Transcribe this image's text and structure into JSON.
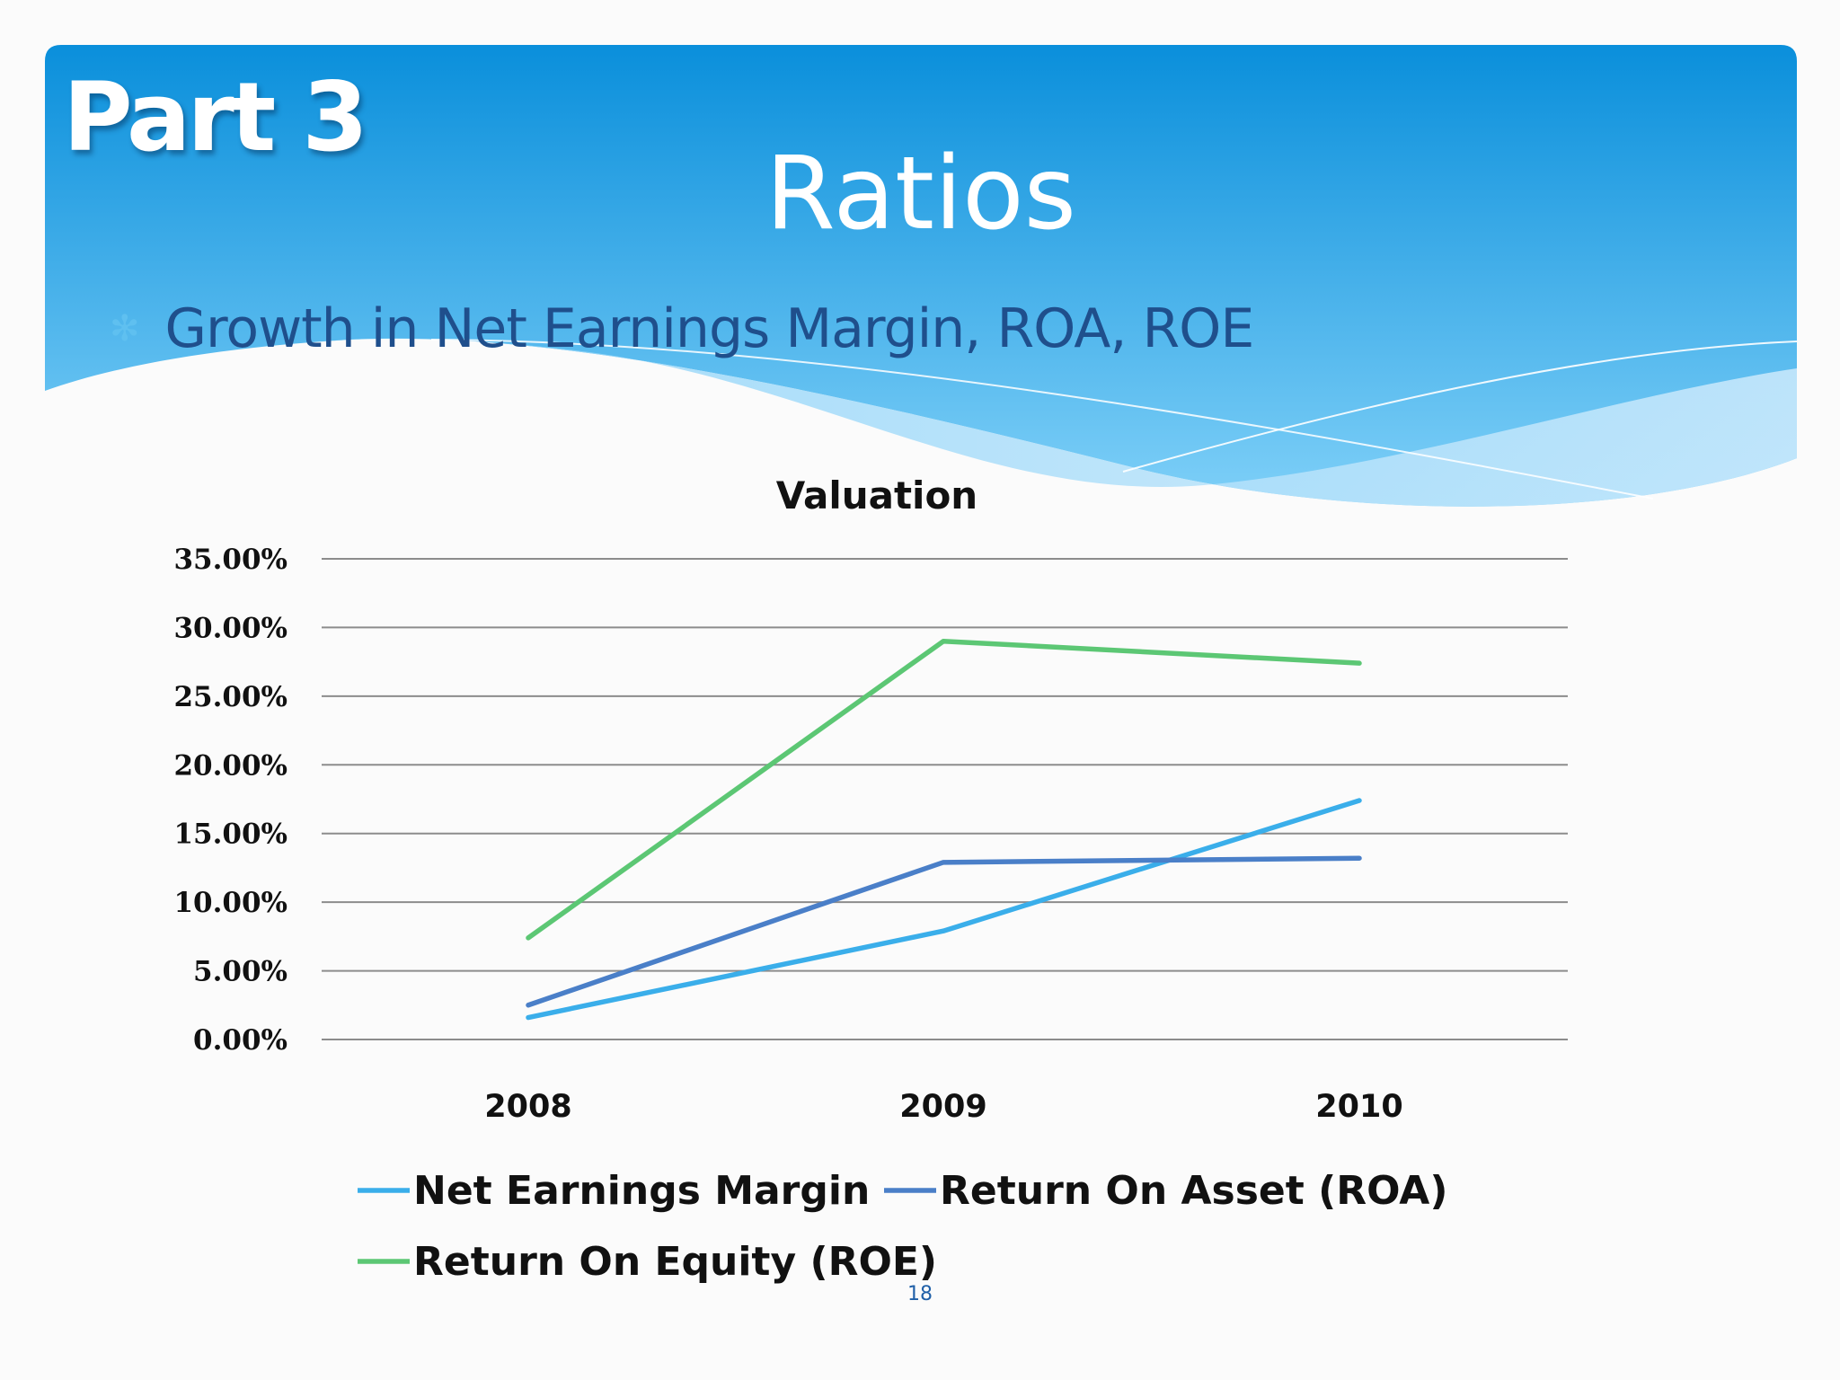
{
  "slide": {
    "part_label": "Part 3",
    "title": "Ratios",
    "bullet_icon": "asterisk-bullet-icon",
    "bullet_text": "Growth in Net Earnings Margin, ROA, ROE",
    "page_number": "18"
  },
  "colors": {
    "banner_top": "#0a8fdb",
    "banner_bottom": "#7fd0f8",
    "title_text": "#ffffff",
    "bullet_text": "#1f4f8c",
    "grid": "#8c8c8c"
  },
  "chart_data": {
    "type": "line",
    "title": "Valuation",
    "categories": [
      "2008",
      "2009",
      "2010"
    ],
    "y_ticks": [
      "0.00%",
      "5.00%",
      "10.00%",
      "15.00%",
      "20.00%",
      "25.00%",
      "30.00%",
      "35.00%"
    ],
    "ylim": [
      0,
      35
    ],
    "grid": true,
    "legend_position": "bottom",
    "series": [
      {
        "name": "Net Earnings Margin",
        "color": "#3aaeea",
        "values": [
          1.6,
          7.9,
          17.4
        ]
      },
      {
        "name": "Return On Asset (ROA)",
        "color": "#4a7fc8",
        "values": [
          2.5,
          12.9,
          13.2
        ]
      },
      {
        "name": "Return On Equity (ROE)",
        "color": "#5cc774",
        "values": [
          7.4,
          29.0,
          27.4
        ]
      }
    ]
  }
}
